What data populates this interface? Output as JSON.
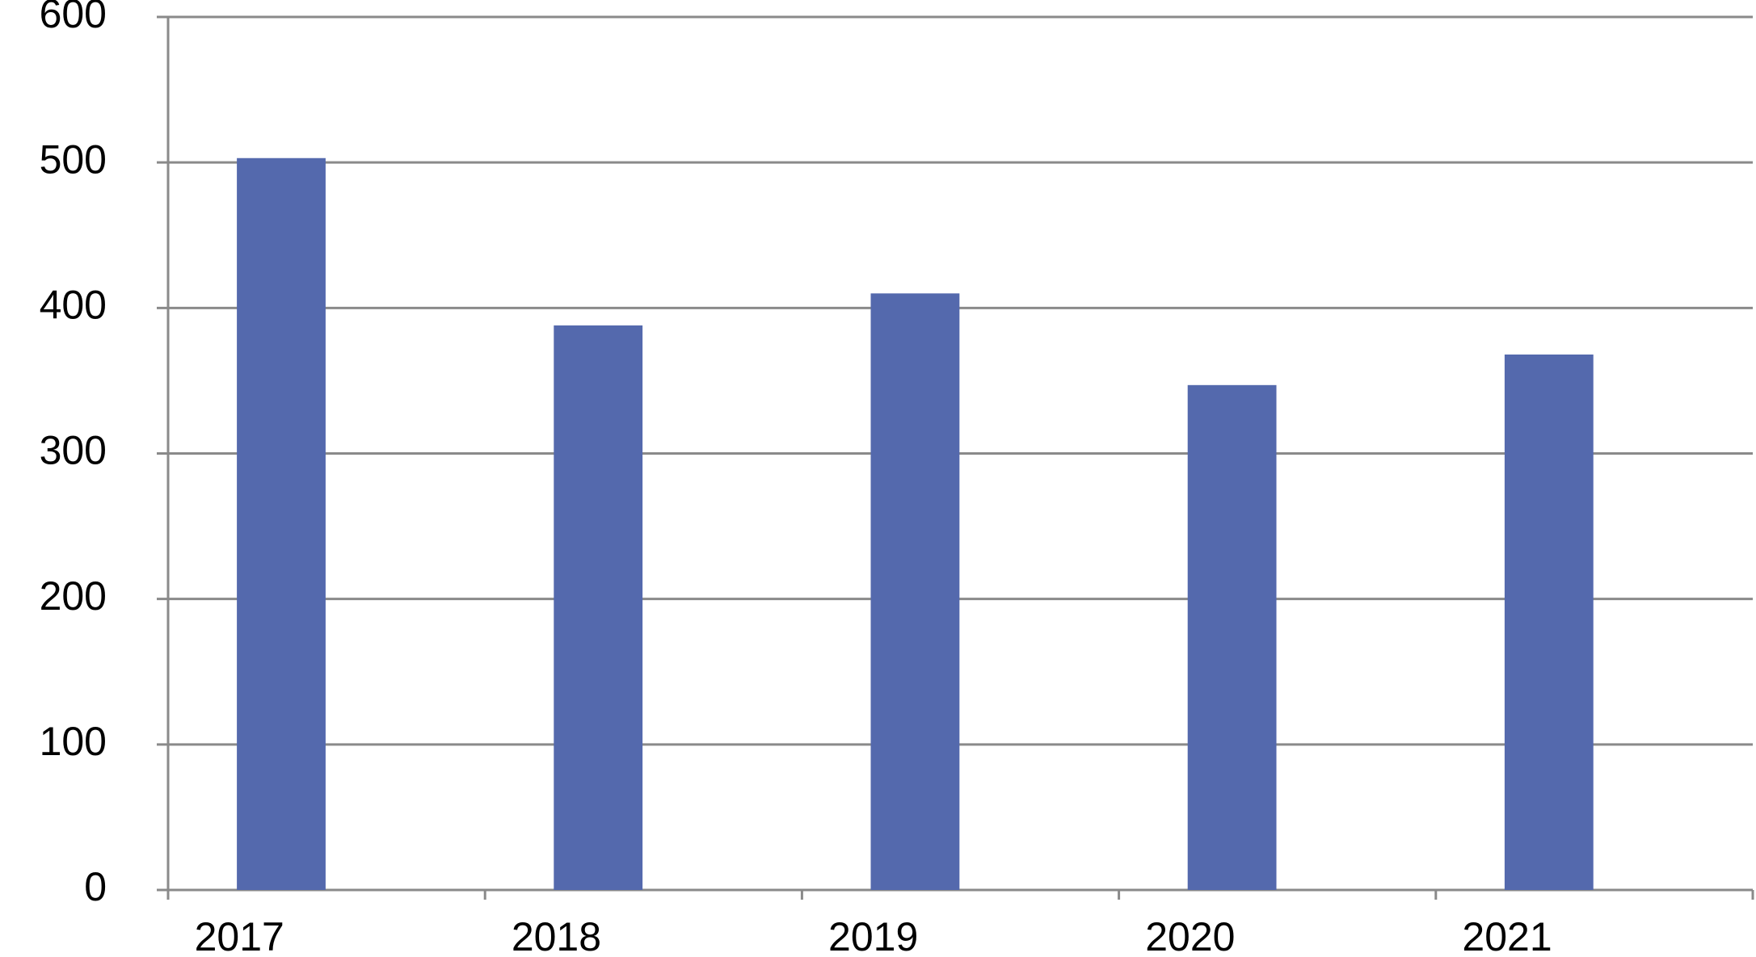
{
  "chart_data": {
    "type": "bar",
    "categories": [
      "2017",
      "2018",
      "2019",
      "2020",
      "2021"
    ],
    "values": [
      503,
      388,
      410,
      347,
      368
    ],
    "color": "#5469ad",
    "ylim": [
      0,
      600
    ],
    "yticks": [
      0,
      100,
      200,
      300,
      400,
      500,
      600
    ],
    "grid": true
  }
}
